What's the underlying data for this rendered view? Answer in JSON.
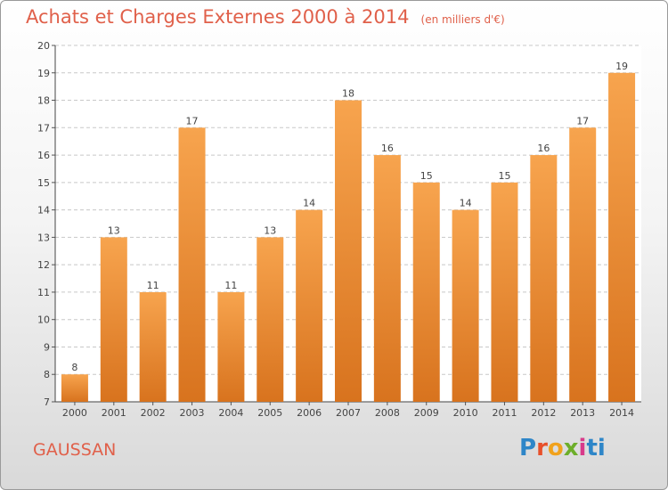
{
  "title": "Achats et Charges Externes 2000 à 2014",
  "subtitle": "(en milliers d'€)",
  "commune": "GAUSSAN",
  "logo": {
    "letters": [
      "P",
      "r",
      "o",
      "x",
      "i",
      "t",
      "i"
    ]
  },
  "colors": {
    "bar_light": "#f7a44e",
    "bar_dark": "#d8731e",
    "title": "#e0604a",
    "grid": "#c8c8c8"
  },
  "chart_data": {
    "type": "bar",
    "categories": [
      "2000",
      "2001",
      "2002",
      "2003",
      "2004",
      "2005",
      "2006",
      "2007",
      "2008",
      "2009",
      "2010",
      "2011",
      "2012",
      "2013",
      "2014"
    ],
    "values": [
      8,
      13,
      11,
      17,
      11,
      13,
      14,
      18,
      16,
      15,
      14,
      15,
      16,
      17,
      19
    ],
    "ylim": [
      7,
      20
    ],
    "yticks": [
      7,
      8,
      9,
      10,
      11,
      12,
      13,
      14,
      15,
      16,
      17,
      18,
      19,
      20
    ],
    "grid": true,
    "xlabel": "",
    "ylabel": ""
  }
}
